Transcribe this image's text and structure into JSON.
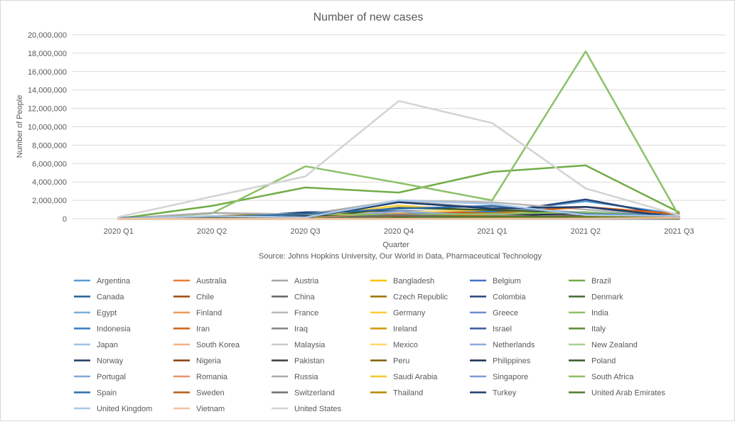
{
  "chart_data": {
    "type": "line",
    "title": "Number of new cases",
    "xlabel": "Quarter",
    "ylabel": "Number of People",
    "source": "Source: Johns Hopkins University, Our World in Data, Pharmaceutical Technology",
    "categories": [
      "2020 Q1",
      "2020 Q2",
      "2020 Q3",
      "2020 Q4",
      "2021 Q1",
      "2021 Q2",
      "2021 Q3"
    ],
    "ylim": [
      0,
      20000000
    ],
    "yticks": [
      0,
      2000000,
      4000000,
      6000000,
      8000000,
      10000000,
      12000000,
      14000000,
      16000000,
      18000000,
      20000000
    ],
    "ytick_labels": [
      "0",
      "2,000,000",
      "4,000,000",
      "6,000,000",
      "8,000,000",
      "10,000,000",
      "12,000,000",
      "14,000,000",
      "16,000,000",
      "18,000,000",
      "20,000,000"
    ],
    "grid": true,
    "legend_position": "bottom",
    "series": [
      {
        "name": "Argentina",
        "color": "#5B9BD5",
        "values": [
          1000,
          60000,
          680000,
          850000,
          720000,
          1900000,
          500000
        ]
      },
      {
        "name": "Australia",
        "color": "#ED7D31",
        "values": [
          5000,
          3000,
          20000,
          1000,
          500,
          1500,
          20000
        ]
      },
      {
        "name": "Austria",
        "color": "#A5A5A5",
        "values": [
          10000,
          7000,
          25000,
          310000,
          130000,
          60000,
          30000
        ]
      },
      {
        "name": "Bangladesh",
        "color": "#FFC000",
        "values": [
          50,
          145000,
          200000,
          120000,
          160000,
          280000,
          400000
        ]
      },
      {
        "name": "Belgium",
        "color": "#4472C4",
        "values": [
          13000,
          48000,
          55000,
          540000,
          150000,
          250000,
          60000
        ]
      },
      {
        "name": "Brazil",
        "color": "#70AD47",
        "values": [
          5700,
          1400000,
          3400000,
          2850000,
          5100000,
          5800000,
          700000
        ]
      },
      {
        "name": "Canada",
        "color": "#255E91",
        "values": [
          9000,
          95000,
          55000,
          430000,
          230000,
          280000,
          20000
        ]
      },
      {
        "name": "Chile",
        "color": "#9E480E",
        "values": [
          2700,
          270000,
          180000,
          140000,
          320000,
          560000,
          30000
        ]
      },
      {
        "name": "China",
        "color": "#636363",
        "values": [
          81000,
          2500,
          5000,
          5000,
          3000,
          3000,
          3000
        ]
      },
      {
        "name": "Czech Republic",
        "color": "#997300",
        "values": [
          3000,
          9000,
          65000,
          640000,
          920000,
          110000,
          5000
        ]
      },
      {
        "name": "Colombia",
        "color": "#264478",
        "values": [
          900,
          95000,
          700000,
          800000,
          620000,
          2100000,
          200000
        ]
      },
      {
        "name": "Denmark",
        "color": "#43682B",
        "values": [
          2900,
          10000,
          16000,
          150000,
          40000,
          60000,
          20000
        ]
      },
      {
        "name": "Egypt",
        "color": "#7CAFDD",
        "values": [
          700,
          68000,
          35000,
          40000,
          45000,
          50000,
          5000
        ]
      },
      {
        "name": "Finland",
        "color": "#F1975A",
        "values": [
          1400,
          6000,
          2500,
          28000,
          30000,
          20000,
          15000
        ]
      },
      {
        "name": "France",
        "color": "#B7B7B7",
        "values": [
          52000,
          110000,
          440000,
          2000000,
          1800000,
          1000000,
          300000
        ]
      },
      {
        "name": "Germany",
        "color": "#FFCD33",
        "values": [
          72000,
          125000,
          90000,
          1450000,
          740000,
          550000,
          100000
        ]
      },
      {
        "name": "Greece",
        "color": "#698ED0",
        "values": [
          1200,
          2500,
          16000,
          120000,
          120000,
          170000,
          60000
        ]
      },
      {
        "name": "India",
        "color": "#8CC168",
        "values": [
          1600,
          580000,
          5700000,
          3900000,
          2000000,
          18200000,
          300000
        ]
      },
      {
        "name": "Indonesia",
        "color": "#327DC2",
        "values": [
          1500,
          55000,
          230000,
          460000,
          780000,
          700000,
          300000
        ]
      },
      {
        "name": "Iran",
        "color": "#D26012",
        "values": [
          44000,
          180000,
          220000,
          780000,
          600000,
          1300000,
          500000
        ]
      },
      {
        "name": "Iraq",
        "color": "#848484",
        "values": [
          700,
          49000,
          300000,
          250000,
          300000,
          450000,
          100000
        ]
      },
      {
        "name": "Ireland",
        "color": "#CC9A00",
        "values": [
          3200,
          22000,
          9000,
          60000,
          140000,
          30000,
          20000
        ]
      },
      {
        "name": "Israel",
        "color": "#335AA1",
        "values": [
          5000,
          20000,
          230000,
          190000,
          370000,
          10000,
          30000
        ]
      },
      {
        "name": "Italy",
        "color": "#5A8A39",
        "values": [
          105000,
          135000,
          60000,
          1800000,
          1100000,
          450000,
          100000
        ]
      },
      {
        "name": "Japan",
        "color": "#9DC3E6",
        "values": [
          2000,
          16000,
          65000,
          150000,
          220000,
          330000,
          50000
        ]
      },
      {
        "name": "South Korea",
        "color": "#F4B183",
        "values": [
          9800,
          3000,
          11000,
          37000,
          38000,
          50000,
          20000
        ]
      },
      {
        "name": "Malaysia",
        "color": "#C9C9C9",
        "values": [
          2700,
          6000,
          3000,
          100000,
          220000,
          440000,
          200000
        ]
      },
      {
        "name": "Mexico",
        "color": "#FFD966",
        "values": [
          1100,
          230000,
          500000,
          700000,
          1000000,
          300000,
          200000
        ]
      },
      {
        "name": "Netherlands",
        "color": "#8FAADC",
        "values": [
          12000,
          38000,
          90000,
          780000,
          350000,
          380000,
          50000
        ]
      },
      {
        "name": "New Zealand",
        "color": "#A9D18E",
        "values": [
          600,
          900,
          300,
          300,
          400,
          200,
          100
        ]
      },
      {
        "name": "Norway",
        "color": "#1F3864",
        "values": [
          4400,
          4500,
          5000,
          35000,
          50000,
          40000,
          10000
        ]
      },
      {
        "name": "Nigeria",
        "color": "#843C0C",
        "values": [
          140,
          25000,
          33000,
          30000,
          70000,
          6000,
          5000
        ]
      },
      {
        "name": "Pakistan",
        "color": "#3A3A3A",
        "values": [
          2000,
          210000,
          100000,
          180000,
          170000,
          290000,
          50000
        ]
      },
      {
        "name": "Peru",
        "color": "#7F6000",
        "values": [
          1000,
          280000,
          530000,
          180000,
          450000,
          530000,
          50000
        ]
      },
      {
        "name": "Philippines",
        "color": "#172C51",
        "values": [
          2000,
          35000,
          280000,
          150000,
          270000,
          650000,
          200000
        ]
      },
      {
        "name": "Poland",
        "color": "#385723",
        "values": [
          2300,
          32000,
          55000,
          1200000,
          950000,
          630000,
          50000
        ]
      },
      {
        "name": "Portugal",
        "color": "#7FA9D8",
        "values": [
          6400,
          36000,
          30000,
          340000,
          400000,
          50000,
          40000
        ]
      },
      {
        "name": "Romania",
        "color": "#E8956A",
        "values": [
          2100,
          25000,
          100000,
          510000,
          300000,
          130000,
          20000
        ]
      },
      {
        "name": "Russia",
        "color": "#ABABAB",
        "values": [
          2300,
          640000,
          470000,
          1900000,
          1200000,
          670000,
          200000
        ]
      },
      {
        "name": "Saudi Arabia",
        "color": "#F3C72E",
        "values": [
          1600,
          190000,
          150000,
          20000,
          20000,
          100000,
          20000
        ]
      },
      {
        "name": "Singapore",
        "color": "#7B9BD4",
        "values": [
          900,
          43000,
          14000,
          500,
          600,
          1000,
          1000
        ]
      },
      {
        "name": "South Africa",
        "color": "#8DBE63",
        "values": [
          1300,
          150000,
          510000,
          400000,
          530000,
          700000,
          200000
        ]
      },
      {
        "name": "Spain",
        "color": "#2E6DA8",
        "values": [
          95000,
          155000,
          520000,
          1100000,
          1400000,
          500000,
          300000
        ]
      },
      {
        "name": "Sweden",
        "color": "#B85B1A",
        "values": [
          4400,
          65000,
          25000,
          350000,
          270000,
          200000,
          20000
        ]
      },
      {
        "name": "Switzerland",
        "color": "#6F6F6F",
        "values": [
          16000,
          16000,
          20000,
          400000,
          100000,
          60000,
          20000
        ]
      },
      {
        "name": "Thailand",
        "color": "#B38900",
        "values": [
          1600,
          1500,
          300,
          4200,
          22000,
          240000,
          300000
        ]
      },
      {
        "name": "Turkey",
        "color": "#203C6C",
        "values": [
          13000,
          190000,
          120000,
          1800000,
          1100000,
          1300000,
          200000
        ]
      },
      {
        "name": "United Arab Emirates",
        "color": "#4E7A2F",
        "values": [
          660,
          48000,
          31000,
          110000,
          240000,
          170000,
          50000
        ]
      },
      {
        "name": "United Kingdom",
        "color": "#A9C7E8",
        "values": [
          25000,
          290000,
          150000,
          2000000,
          1600000,
          400000,
          300000
        ]
      },
      {
        "name": "Vietnam",
        "color": "#F2C09E",
        "values": [
          200,
          150,
          750,
          300,
          1000,
          15000,
          100000
        ]
      },
      {
        "name": "United States",
        "color": "#D3D3D3",
        "values": [
          190000,
          2400000,
          4600000,
          12800000,
          10400000,
          3300000,
          400000
        ]
      }
    ]
  }
}
